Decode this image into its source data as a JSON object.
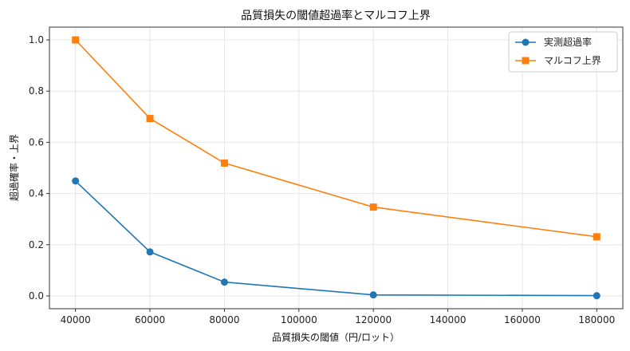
{
  "chart_data": {
    "type": "line",
    "title": "品質損失の閾値超過率とマルコフ上界",
    "xlabel": "品質損失の閾値（円/ロット）",
    "ylabel": "超過確率・上界",
    "x": [
      40000,
      60000,
      80000,
      120000,
      180000
    ],
    "xlim": [
      33000,
      187000
    ],
    "ylim": [
      -0.05,
      1.05
    ],
    "xticks": [
      40000,
      60000,
      80000,
      100000,
      120000,
      140000,
      160000,
      180000
    ],
    "yticks": [
      0.0,
      0.2,
      0.4,
      0.6,
      0.8,
      1.0
    ],
    "ytick_labels": [
      "0.0",
      "0.2",
      "0.4",
      "0.6",
      "0.8",
      "1.0"
    ],
    "grid": true,
    "legend_position": "top-right",
    "series": [
      {
        "name": "実測超過率",
        "values": [
          0.449,
          0.172,
          0.054,
          0.004,
          0.001
        ],
        "color": "#1f77b4",
        "marker": "circle"
      },
      {
        "name": "マルコフ上界",
        "values": [
          1.0,
          0.693,
          0.519,
          0.347,
          0.231
        ],
        "color": "#ff7f0e",
        "marker": "square"
      }
    ]
  }
}
